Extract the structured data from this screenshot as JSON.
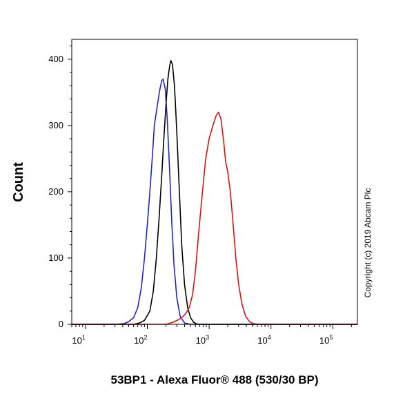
{
  "chart_data": {
    "type": "line",
    "xlabel": "53BP1 - Alexa Fluor® 488 (530/30 BP)",
    "ylabel": "Count",
    "x_scale": "log",
    "xlim": [
      6,
      250000
    ],
    "ylim": [
      0,
      430
    ],
    "x_ticks": [
      {
        "value": 10,
        "base": "10",
        "exp": "1"
      },
      {
        "value": 100,
        "base": "10",
        "exp": "2"
      },
      {
        "value": 1000,
        "base": "10",
        "exp": "3"
      },
      {
        "value": 10000,
        "base": "10",
        "exp": "4"
      },
      {
        "value": 100000,
        "base": "10",
        "exp": "5"
      }
    ],
    "y_ticks": [
      {
        "value": 0,
        "label": "0"
      },
      {
        "value": 100,
        "label": "100"
      },
      {
        "value": 200,
        "label": "200"
      },
      {
        "value": 300,
        "label": "300"
      },
      {
        "value": 400,
        "label": "400"
      }
    ],
    "grid": false,
    "annotation": "Copyright (c) 2019 Abcam Plc",
    "series": [
      {
        "color": "#2222cc",
        "points": [
          [
            6,
            0
          ],
          [
            30,
            0
          ],
          [
            42,
            1
          ],
          [
            50,
            4
          ],
          [
            60,
            10
          ],
          [
            70,
            25
          ],
          [
            80,
            55
          ],
          [
            90,
            100
          ],
          [
            100,
            150
          ],
          [
            110,
            200
          ],
          [
            120,
            250
          ],
          [
            130,
            300
          ],
          [
            145,
            330
          ],
          [
            160,
            355
          ],
          [
            172,
            368
          ],
          [
            180,
            370
          ],
          [
            195,
            355
          ],
          [
            210,
            310
          ],
          [
            230,
            230
          ],
          [
            250,
            150
          ],
          [
            270,
            90
          ],
          [
            300,
            40
          ],
          [
            340,
            12
          ],
          [
            400,
            2
          ],
          [
            500,
            0
          ],
          [
            250000,
            0
          ]
        ]
      },
      {
        "color": "#000000",
        "points": [
          [
            6,
            0
          ],
          [
            60,
            0
          ],
          [
            75,
            2
          ],
          [
            90,
            6
          ],
          [
            110,
            20
          ],
          [
            125,
            50
          ],
          [
            140,
            100
          ],
          [
            155,
            160
          ],
          [
            170,
            220
          ],
          [
            185,
            280
          ],
          [
            200,
            330
          ],
          [
            215,
            370
          ],
          [
            230,
            390
          ],
          [
            240,
            398
          ],
          [
            255,
            392
          ],
          [
            275,
            360
          ],
          [
            300,
            290
          ],
          [
            330,
            200
          ],
          [
            360,
            120
          ],
          [
            400,
            60
          ],
          [
            450,
            25
          ],
          [
            500,
            10
          ],
          [
            560,
            3
          ],
          [
            650,
            0
          ],
          [
            250000,
            0
          ]
        ]
      },
      {
        "color": "#dd1111",
        "points": [
          [
            6,
            0
          ],
          [
            200,
            0
          ],
          [
            260,
            3
          ],
          [
            320,
            7
          ],
          [
            380,
            12
          ],
          [
            430,
            18
          ],
          [
            480,
            26
          ],
          [
            540,
            45
          ],
          [
            600,
            80
          ],
          [
            680,
            140
          ],
          [
            780,
            200
          ],
          [
            880,
            250
          ],
          [
            1000,
            280
          ],
          [
            1150,
            300
          ],
          [
            1300,
            315
          ],
          [
            1420,
            320
          ],
          [
            1550,
            310
          ],
          [
            1700,
            280
          ],
          [
            1850,
            245
          ],
          [
            2000,
            230
          ],
          [
            2200,
            200
          ],
          [
            2450,
            150
          ],
          [
            2700,
            100
          ],
          [
            3000,
            60
          ],
          [
            3400,
            30
          ],
          [
            3900,
            12
          ],
          [
            4500,
            4
          ],
          [
            5200,
            1
          ],
          [
            6000,
            0
          ],
          [
            250000,
            0
          ]
        ]
      }
    ]
  }
}
